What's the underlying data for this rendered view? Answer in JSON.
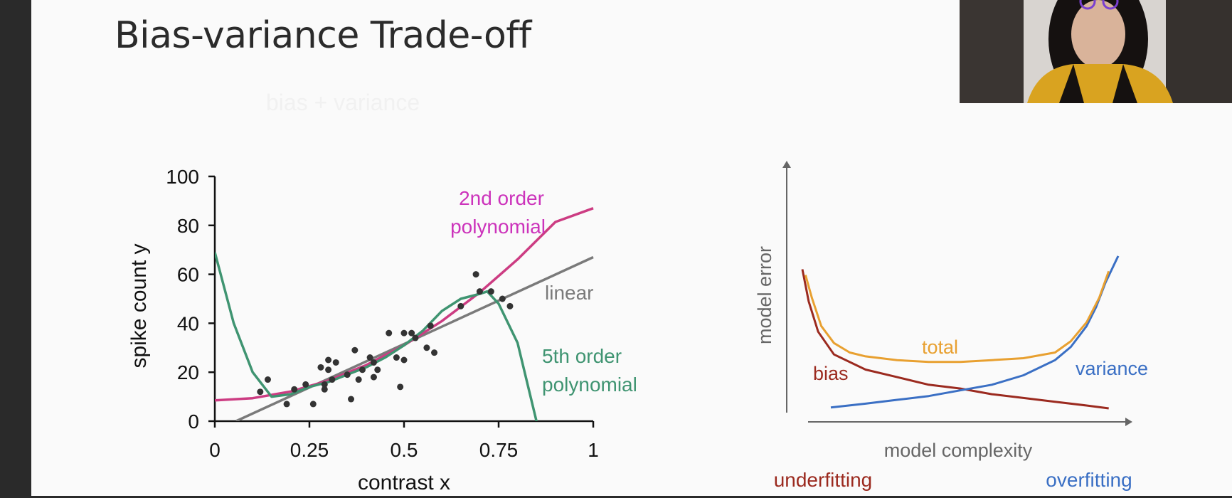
{
  "slide": {
    "title": "Bias-variance Trade-off",
    "faint_subtitle": "bias + variance"
  },
  "webcam": {
    "icon": "presenter-webcam-video"
  },
  "chart_data": [
    {
      "type": "scatter",
      "xlabel": "contrast x",
      "ylabel": "spike count y",
      "xlim": [
        0,
        1
      ],
      "ylim": [
        0,
        100
      ],
      "xticks": [
        0,
        0.25,
        0.5,
        0.75,
        1
      ],
      "xtick_labels": [
        "0",
        "0.25",
        "0.5",
        "0.75",
        "1"
      ],
      "yticks": [
        0,
        20,
        40,
        60,
        80,
        100
      ],
      "ytick_labels": [
        "0",
        "20",
        "40",
        "60",
        "80",
        "100"
      ],
      "grid": false,
      "points": {
        "color": "#333333",
        "x": [
          0.12,
          0.14,
          0.19,
          0.21,
          0.24,
          0.26,
          0.28,
          0.29,
          0.29,
          0.3,
          0.3,
          0.31,
          0.32,
          0.35,
          0.36,
          0.37,
          0.38,
          0.39,
          0.41,
          0.42,
          0.42,
          0.43,
          0.46,
          0.48,
          0.49,
          0.5,
          0.5,
          0.52,
          0.53,
          0.56,
          0.57,
          0.58,
          0.65,
          0.69,
          0.7,
          0.73,
          0.76,
          0.78
        ],
        "y": [
          12,
          17,
          7,
          13,
          15,
          7,
          22,
          13,
          15,
          21,
          25,
          17,
          24,
          19,
          9,
          29,
          17,
          21,
          26,
          24,
          18,
          21,
          36,
          26,
          14,
          25,
          36,
          36,
          34,
          30,
          39,
          28,
          47,
          60,
          53,
          53,
          50,
          47
        ]
      },
      "series": [
        {
          "name": "linear",
          "color": "#7a7a7a",
          "x": [
            0.056,
            1.0
          ],
          "y": [
            0,
            67
          ]
        },
        {
          "name": "2nd order polynomial",
          "color": "#cc3c82",
          "x": [
            0,
            0.1,
            0.2,
            0.3,
            0.4,
            0.5,
            0.6,
            0.7,
            0.8,
            0.9,
            1.0
          ],
          "y": [
            8.5,
            9.4,
            12.1,
            16.6,
            22.9,
            31,
            40.9,
            52.6,
            66.1,
            81.4,
            87
          ]
        },
        {
          "name": "5th order polynomial",
          "color": "#3f9471",
          "x": [
            0,
            0.05,
            0.1,
            0.15,
            0.2,
            0.25,
            0.3,
            0.35,
            0.4,
            0.45,
            0.5,
            0.55,
            0.6,
            0.65,
            0.7,
            0.72,
            0.75,
            0.8,
            0.85
          ],
          "y": [
            69,
            40,
            20,
            10,
            11,
            14,
            16,
            19,
            22,
            26,
            31,
            37,
            45,
            50,
            52,
            53,
            48,
            32,
            0
          ]
        }
      ],
      "annotations": [
        {
          "text": "2nd order",
          "color": "#cc33bb"
        },
        {
          "text": "polynomial",
          "color": "#cc33bb"
        },
        {
          "text": "linear",
          "color": "#7a7a7a"
        },
        {
          "text": "5th order",
          "color": "#3f9471"
        },
        {
          "text": "polynomial",
          "color": "#3f9471"
        }
      ]
    },
    {
      "type": "line",
      "xlabel": "model complexity",
      "ylabel": "model error",
      "grid": false,
      "xlim": [
        0,
        1
      ],
      "ylim": [
        0,
        1
      ],
      "series": [
        {
          "name": "bias",
          "color": "#9b2a1f",
          "x": [
            0,
            0.02,
            0.05,
            0.1,
            0.2,
            0.3,
            0.4,
            0.5,
            0.6,
            0.7,
            0.8,
            0.9,
            0.97
          ],
          "y": [
            0.75,
            0.58,
            0.42,
            0.3,
            0.22,
            0.18,
            0.14,
            0.12,
            0.09,
            0.07,
            0.05,
            0.03,
            0.015
          ]
        },
        {
          "name": "variance",
          "color": "#3a6fc4",
          "x": [
            0.09,
            0.2,
            0.3,
            0.4,
            0.5,
            0.6,
            0.7,
            0.8,
            0.85,
            0.9,
            0.93,
            0.96,
            1.0
          ],
          "y": [
            0.02,
            0.04,
            0.06,
            0.08,
            0.11,
            0.14,
            0.19,
            0.27,
            0.34,
            0.45,
            0.55,
            0.68,
            0.82
          ]
        },
        {
          "name": "total",
          "color": "#e8a030",
          "x": [
            0.01,
            0.03,
            0.06,
            0.1,
            0.15,
            0.2,
            0.3,
            0.4,
            0.5,
            0.6,
            0.7,
            0.8,
            0.85,
            0.9,
            0.94,
            0.97
          ],
          "y": [
            0.72,
            0.6,
            0.45,
            0.36,
            0.31,
            0.29,
            0.27,
            0.26,
            0.26,
            0.27,
            0.28,
            0.31,
            0.37,
            0.47,
            0.6,
            0.74
          ]
        }
      ],
      "annotations": [
        {
          "text": "underfitting",
          "color": "#9b2a1f"
        },
        {
          "text": "overfitting",
          "color": "#3a6fc4"
        }
      ]
    }
  ]
}
